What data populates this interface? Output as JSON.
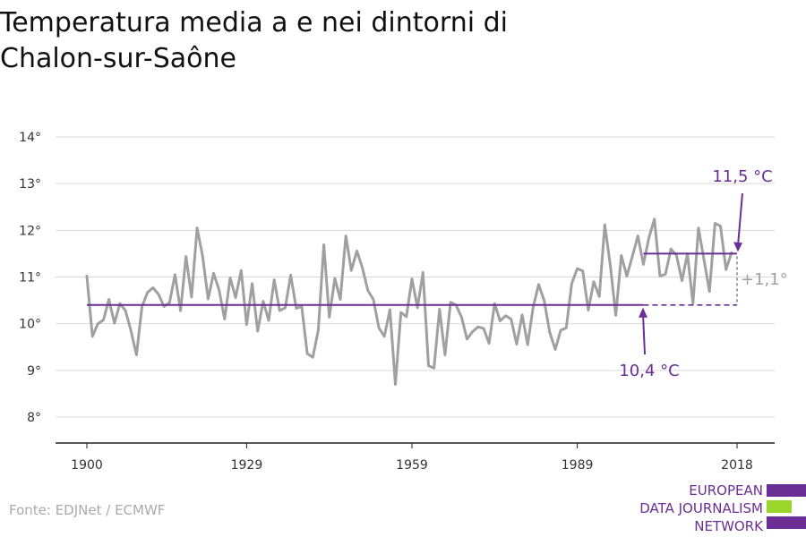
{
  "header": {
    "title_line1": "Temperatura media a e nei dintorni di",
    "title_line2": "Chalon-sur-Saône"
  },
  "source": "Fonte: EDJNet / ECMWF",
  "logo": {
    "line1": "EUROPEAN",
    "line2": "DATA JOURNALISM",
    "line3": "NETWORK",
    "colors": [
      "#6b2e94",
      "#9bd42a",
      "#6b2e94"
    ]
  },
  "colors": {
    "series": "#a0a0a0",
    "baseline": "#6b2e94",
    "recent": "#6b2e94",
    "delta": "#a0a0a0",
    "grid": "#d9d9d9"
  },
  "chart_data": {
    "type": "line",
    "x_ticks": [
      "1900",
      "1929",
      "1959",
      "1989",
      "2018"
    ],
    "y_ticks": [
      "8°",
      "9°",
      "10°",
      "11°",
      "12°",
      "13°",
      "14°"
    ],
    "xlim": [
      1900,
      2018
    ],
    "ylim": [
      8,
      14
    ],
    "grid": true,
    "years": [
      1900,
      2018
    ],
    "values": [
      11.02,
      9.73,
      10.0,
      10.08,
      10.52,
      10.01,
      10.43,
      10.28,
      9.85,
      9.33,
      10.36,
      10.67,
      10.77,
      10.63,
      10.37,
      10.45,
      11.05,
      10.28,
      11.44,
      10.57,
      12.05,
      11.45,
      10.53,
      11.08,
      10.72,
      10.1,
      10.98,
      10.56,
      11.14,
      9.98,
      10.86,
      9.84,
      10.48,
      10.07,
      10.94,
      10.28,
      10.34,
      11.04,
      10.33,
      10.37,
      9.36,
      9.28,
      9.86,
      11.69,
      10.14,
      10.97,
      10.52,
      11.88,
      11.14,
      11.56,
      11.2,
      10.71,
      10.52,
      9.91,
      9.73,
      10.3,
      8.7,
      10.24,
      10.15,
      10.96,
      10.34,
      11.1,
      9.1,
      9.05,
      10.31,
      9.33,
      10.46,
      10.4,
      10.14,
      9.67,
      9.83,
      9.93,
      9.9,
      9.58,
      10.43,
      10.06,
      10.17,
      10.1,
      9.56,
      10.19,
      9.55,
      10.36,
      10.84,
      10.49,
      9.82,
      9.45,
      9.86,
      9.91,
      10.86,
      11.18,
      11.13,
      10.29,
      10.9,
      10.58,
      12.12,
      11.25,
      10.18,
      11.46,
      11.02,
      11.44,
      11.88,
      11.27,
      11.84,
      12.24,
      11.02,
      11.06,
      11.6,
      11.47,
      10.92,
      11.5,
      10.43,
      12.05,
      11.37,
      10.69,
      12.15,
      12.09,
      11.16,
      11.52
    ],
    "baseline": {
      "value": 10.4,
      "from": 1900,
      "solid_to": 2001,
      "dashed_to": 2018,
      "label": "10,4 °C"
    },
    "recent": {
      "value": 11.5,
      "from": 2001,
      "to": 2018,
      "label": "11,5 °C"
    },
    "delta_label": "+1,1°"
  }
}
